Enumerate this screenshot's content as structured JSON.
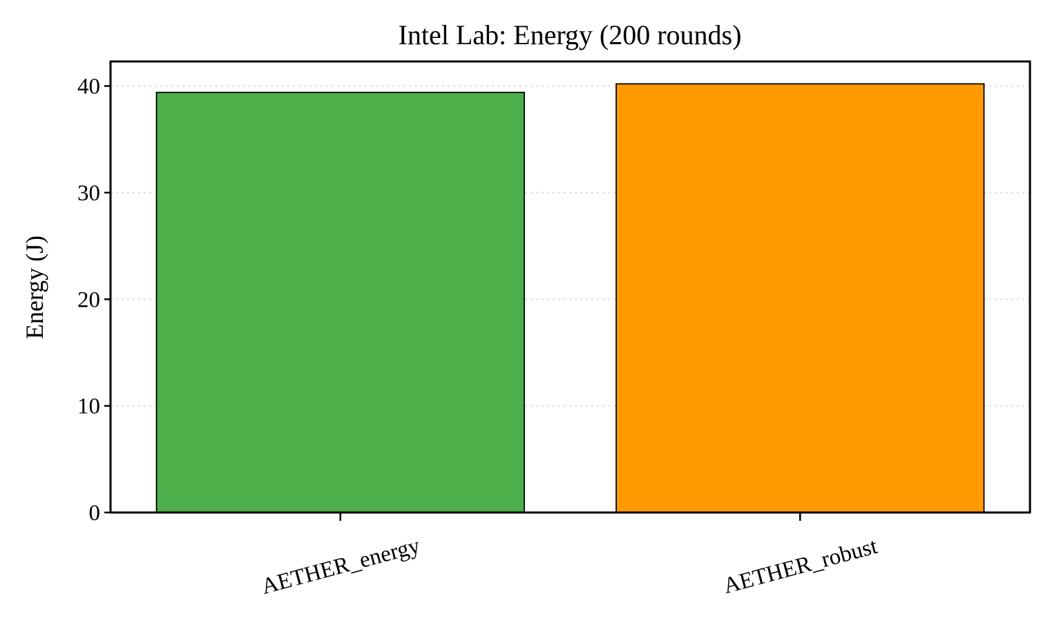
{
  "chart_data": {
    "type": "bar",
    "title": "Intel Lab: Energy (200 rounds)",
    "xlabel": "",
    "ylabel": "Energy (J)",
    "categories": [
      "AETHER_energy",
      "AETHER_robust"
    ],
    "values": [
      39.4,
      40.2
    ],
    "colors": [
      "#4daf4a",
      "#ff9900"
    ],
    "ylim": [
      0,
      42.3
    ],
    "yticks": [
      0,
      10,
      20,
      30,
      40
    ],
    "grid": "y-dotted",
    "legend": "none"
  }
}
